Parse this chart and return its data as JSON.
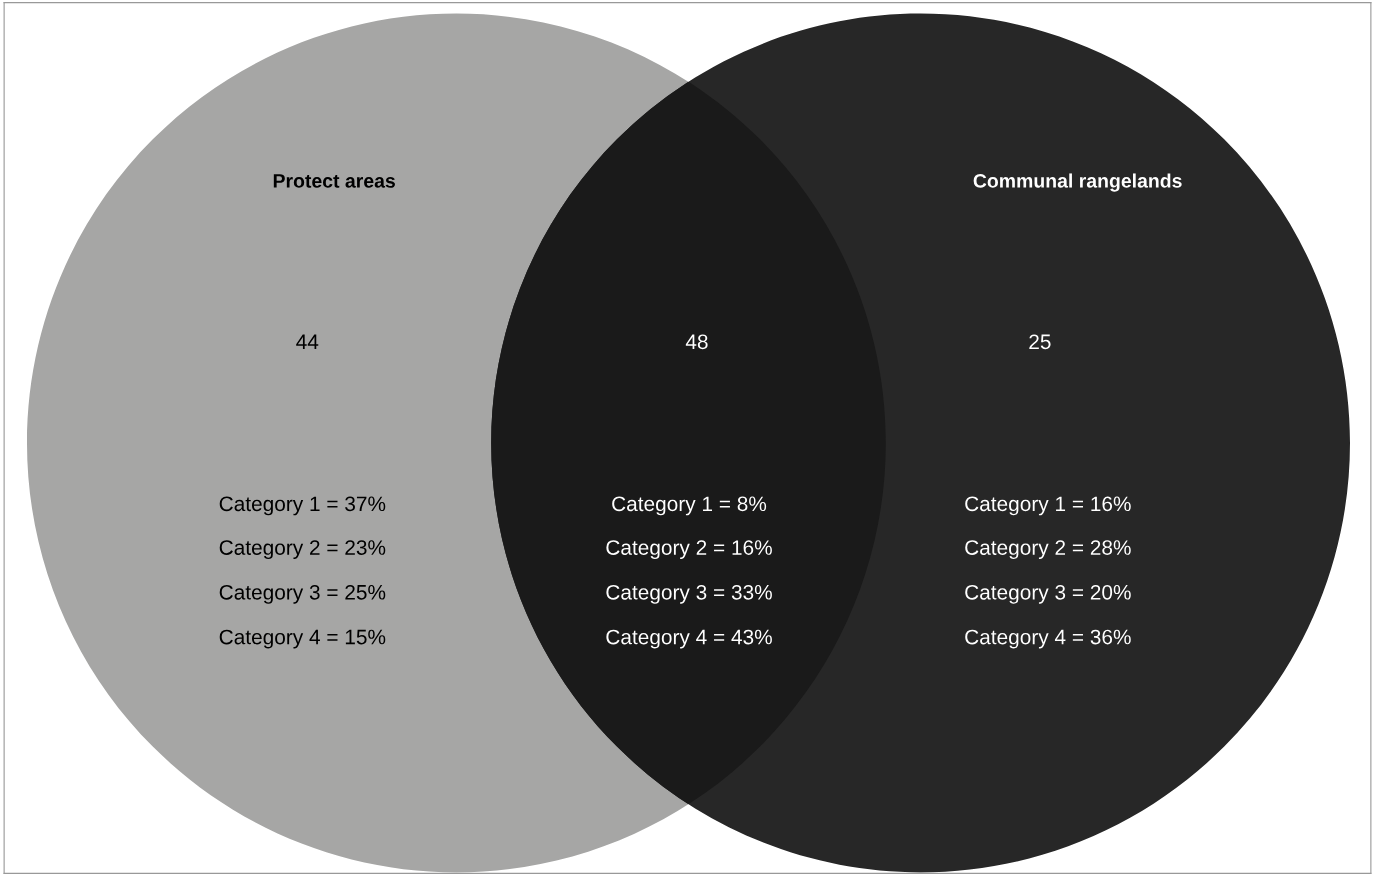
{
  "chart_data": {
    "type": "other",
    "categories": [
      null,
      null,
      null
    ],
    "values": [
      44,
      48,
      25
    ],
    "colors": [
      "#a6a6a5",
      "#1a1a1a",
      "#272727"
    ],
    "data_labels": true,
    "annotations": [
      "Protect areas",
      "Communal rangelands",
      "Category 1 = 37%",
      "Category 2 = 23%",
      "Category 3 = 25%",
      "Category 4 = 15%",
      "Category 1 = 8%",
      "Category 2 = 16%",
      "Category 3 = 33%",
      "Category 4 = 43%",
      "Category 1 = 16%",
      "Category 2 = 28%",
      "Category 3 = 20%",
      "Category 4 = 36%"
    ]
  }
}
